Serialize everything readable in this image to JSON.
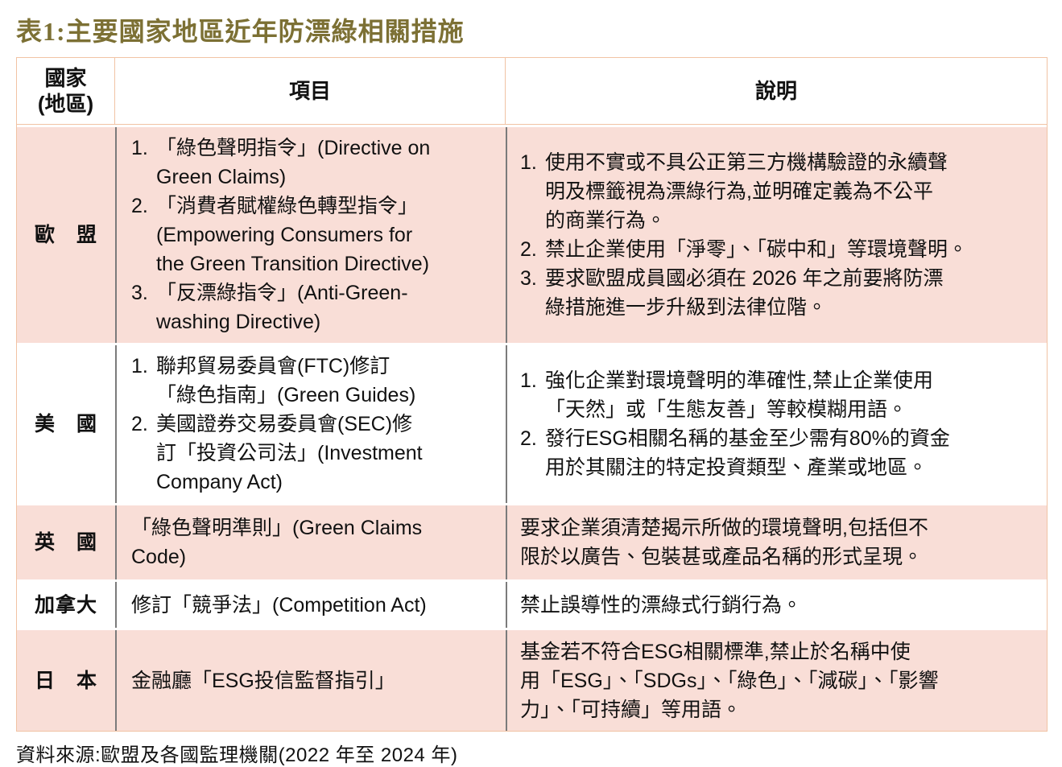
{
  "title": "表1:主要國家地區近年防漂綠相關措施",
  "source": "資料來源:歐盟及各國監理機關(2022 年至 2024 年)",
  "colors": {
    "title_gold": "#7c7034",
    "row_pink": "#f9ded7",
    "header_border_salmon": "#f1c3a4",
    "body_divider_gray": "#7b7b7b",
    "text": "#111111"
  },
  "table": {
    "header": {
      "country": "國家\n(地區)",
      "item": "項目",
      "description": "說明"
    },
    "rows": [
      {
        "country": "歐　盟",
        "items": [
          {
            "marker": "1.",
            "text": "「綠色聲明指令」(Directive on\nGreen Claims)"
          },
          {
            "marker": "2.",
            "text": "「消費者賦權綠色轉型指令」\n(Empowering Consumers for\nthe Green Transition Directive)"
          },
          {
            "marker": "3.",
            "text": "「反漂綠指令」(Anti-Green-\nwashing Directive)"
          }
        ],
        "descs": [
          {
            "marker": "1.",
            "text": "使用不實或不具公正第三方機構驗證的永續聲\n明及標籤視為漂綠行為,並明確定義為不公平\n的商業行為。"
          },
          {
            "marker": "2.",
            "text": "禁止企業使用「淨零」、「碳中和」等環境聲明。"
          },
          {
            "marker": "3.",
            "text": "要求歐盟成員國必須在 2026 年之前要將防漂\n綠措施進一步升級到法律位階。"
          }
        ]
      },
      {
        "country": "美　國",
        "items": [
          {
            "marker": "1.",
            "text": "聯邦貿易委員會(FTC)修訂\n「綠色指南」(Green Guides)"
          },
          {
            "marker": "2.",
            "text": "美國證券交易委員會(SEC)修\n訂「投資公司法」(Investment\nCompany Act)"
          }
        ],
        "descs": [
          {
            "marker": "1.",
            "text": "強化企業對環境聲明的準確性,禁止企業使用\n「天然」或「生態友善」等較模糊用語。"
          },
          {
            "marker": "2.",
            "text": "發行ESG相關名稱的基金至少需有80%的資金\n用於其關注的特定投資類型、產業或地區。"
          }
        ]
      },
      {
        "country": "英　國",
        "items": [
          {
            "marker": "",
            "text": "「綠色聲明準則」(Green Claims\nCode)"
          }
        ],
        "descs": [
          {
            "marker": "",
            "text": "要求企業須清楚揭示所做的環境聲明,包括但不\n限於以廣告、包裝甚或產品名稱的形式呈現。"
          }
        ]
      },
      {
        "country": "加拿大",
        "items": [
          {
            "marker": "",
            "text": "修訂「競爭法」(Competition Act)"
          }
        ],
        "descs": [
          {
            "marker": "",
            "text": "禁止誤導性的漂綠式行銷行為。"
          }
        ]
      },
      {
        "country": "日　本",
        "items": [
          {
            "marker": "",
            "text": "金融廳「ESG投信監督指引」"
          }
        ],
        "descs": [
          {
            "marker": "",
            "text": "基金若不符合ESG相關標準,禁止於名稱中使\n用「ESG」、「SDGs」、「綠色」、「減碳」、「影響\n力」、「可持續」等用語。"
          }
        ]
      }
    ]
  }
}
